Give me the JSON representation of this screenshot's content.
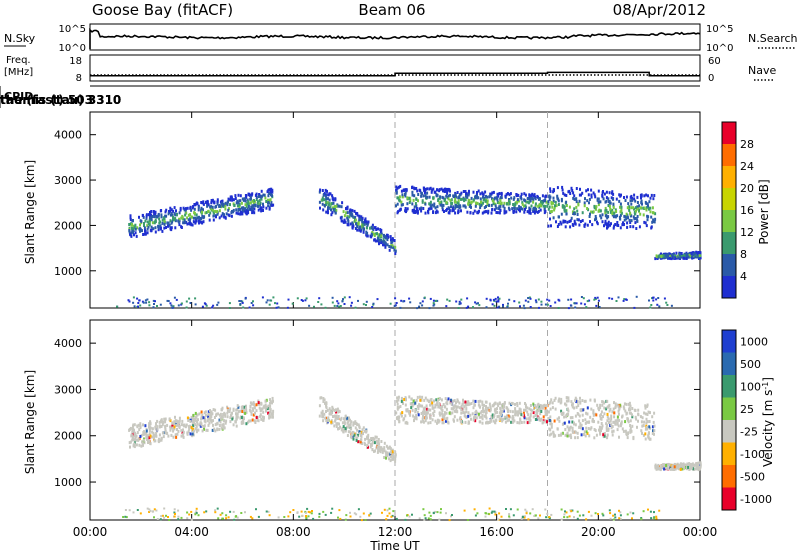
{
  "header": {
    "station": "Goose Bay (fitACF)",
    "beam": "Beam 06",
    "date": "08/Apr/2012"
  },
  "panels": {
    "nsky": {
      "label": "N.Sky",
      "ticks": [
        "10^5",
        "10^0"
      ],
      "right_label": "N.Search",
      "right_ticks": [
        "10^5",
        "10^0"
      ]
    },
    "freq": {
      "label_line1": "Freq.",
      "label_line2": "[MHz]",
      "ticks": [
        "18",
        "8"
      ],
      "right_label": "Nave",
      "right_ticks": [
        "60",
        "0"
      ]
    },
    "cpid": {
      "label": "CPID",
      "segments": [
        {
          "text": "themis (tau) 3310",
          "start_hour": 0
        },
        {
          "text": "tau (fast) 503",
          "start_hour": 12
        },
        {
          "text": "themis (tau) 3310",
          "start_hour": 18
        }
      ]
    }
  },
  "colorbars": {
    "power": {
      "title": "Power [dB]",
      "labels": [
        "28",
        "24",
        "20",
        "16",
        "12",
        "8",
        "4"
      ],
      "colors": [
        "#e8002a",
        "#ff6d00",
        "#ffb000",
        "#c8d400",
        "#7ac943",
        "#3a9a6e",
        "#2a5aa8",
        "#1f2fd0"
      ]
    },
    "velocity": {
      "title": "Velocity [m s",
      "title_sup": "-1",
      "title_end": "]",
      "labels": [
        "1000",
        "500",
        "100",
        "25",
        "-25",
        "-100",
        "-500",
        "-1000"
      ],
      "colors": [
        "#1f3fd0",
        "#2a6ab0",
        "#3a9a6e",
        "#7ac943",
        "#c8c8c0",
        "#ffb000",
        "#ff6d00",
        "#e8002a"
      ]
    }
  },
  "chart_data": {
    "type": "heatmap",
    "x_ticks": [
      "00:00",
      "04:00",
      "08:00",
      "12:00",
      "16:00",
      "20:00",
      "00:00"
    ],
    "x_range_hours": [
      0,
      24
    ],
    "xlabel": "Time UT",
    "ylabel": "Slant Range [km]",
    "y_ticks": [
      1000,
      2000,
      3000,
      4000
    ],
    "y_range_km": [
      180,
      4500
    ],
    "mode_changes_hours": [
      12,
      18
    ],
    "scatter_regions": [
      {
        "name": "arc-1",
        "start": 1.5,
        "end": 7.2,
        "bottom_start": 1750,
        "bottom_end": 2400,
        "top_start": 2250,
        "top_end": 2850
      },
      {
        "name": "arc-2",
        "start": 9.0,
        "end": 12.0,
        "bottom_start": 2400,
        "bottom_end": 1400,
        "top_start": 2900,
        "top_end": 1700
      },
      {
        "name": "band-3",
        "start": 12.0,
        "end": 18.0,
        "bottom_start": 2300,
        "bottom_end": 2300,
        "top_start": 2900,
        "top_end": 2700
      },
      {
        "name": "band-4",
        "start": 18.0,
        "end": 22.2,
        "bottom_start": 2000,
        "bottom_end": 1950,
        "top_start": 2900,
        "top_end": 2700
      },
      {
        "name": "tail",
        "start": 22.2,
        "end": 24.0,
        "bottom_start": 1300,
        "bottom_end": 1300,
        "top_start": 1400,
        "top_end": 1450
      }
    ],
    "nsky_level": 2.4,
    "freq_mhz": [
      {
        "start": 0,
        "end": 12,
        "value": 10
      },
      {
        "start": 12,
        "end": 18,
        "value": 11
      },
      {
        "start": 18,
        "end": 22,
        "value": 11.3
      },
      {
        "start": 22,
        "end": 24,
        "value": 10
      }
    ]
  }
}
